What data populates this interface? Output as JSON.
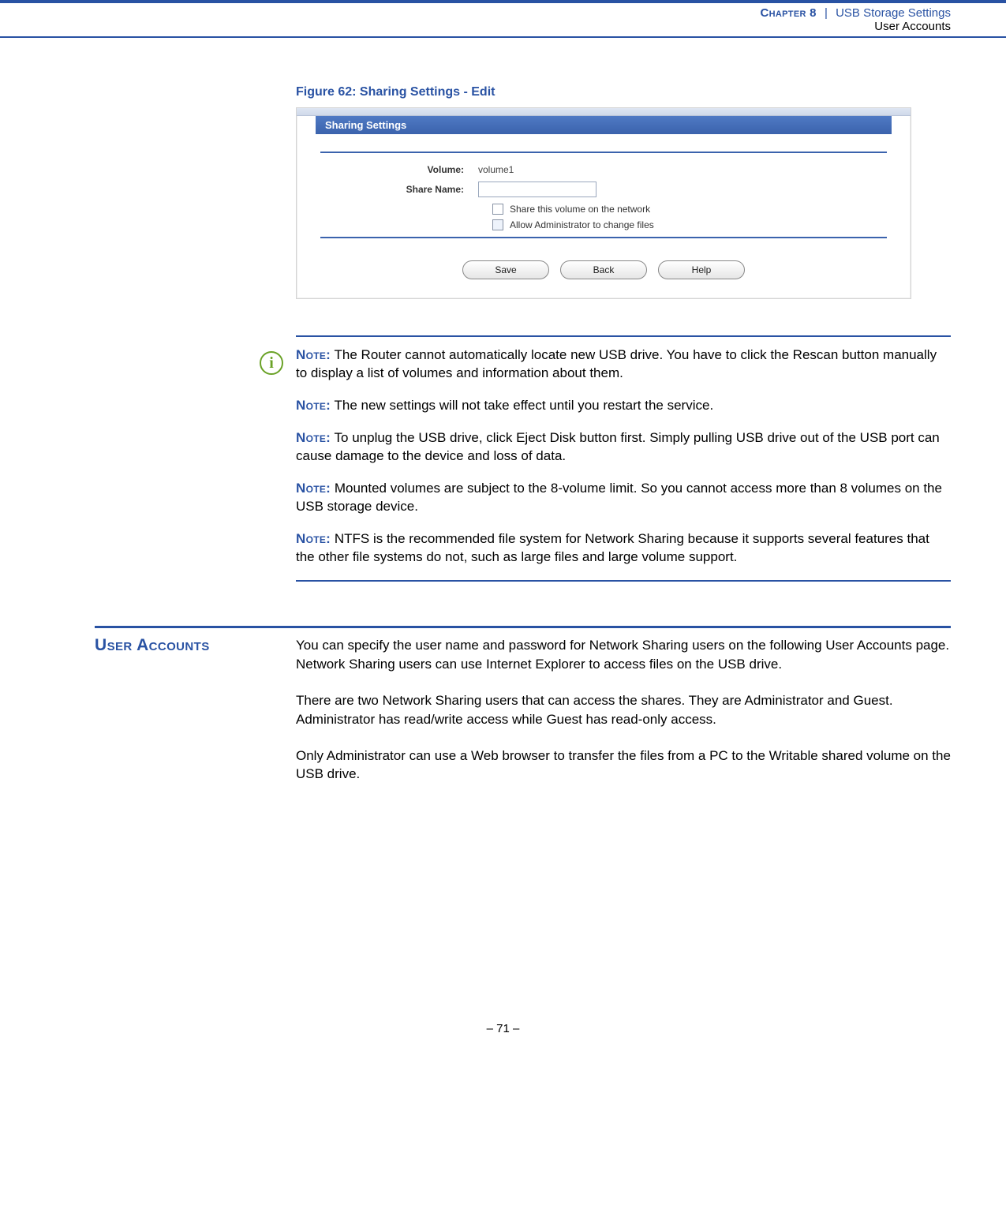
{
  "header": {
    "chapter_label": "Chapter 8",
    "chapter_title": "USB Storage Settings",
    "section_title": "User Accounts"
  },
  "figure": {
    "caption": "Figure 62:  Sharing Settings - Edit"
  },
  "screenshot": {
    "panel_title": "Sharing Settings",
    "volume_label": "Volume:",
    "volume_value": "volume1",
    "share_name_label": "Share Name:",
    "share_name_value": "",
    "checkbox1_label": "Share this volume on the network",
    "checkbox2_label": "Allow Administrator to change files",
    "buttons": {
      "save": "Save",
      "back": "Back",
      "help": "Help"
    }
  },
  "notes": {
    "label": "Note:",
    "items": [
      "The Router cannot automatically locate new USB drive. You have to click the Rescan button manually to display a list of volumes and information about them.",
      "The new settings will not take effect until you restart the service.",
      "To unplug the USB drive, click Eject Disk button first. Simply pulling USB drive out of the USB port can cause damage to the device and loss of data.",
      "Mounted volumes are subject to the 8-volume limit. So you cannot access more than 8 volumes on the USB storage device.",
      "NTFS is the recommended file system for Network Sharing because it supports several features that the other file systems do not, such as large files and large volume support."
    ]
  },
  "section": {
    "heading": "User Accounts",
    "paragraphs": [
      "You can specify the user name and password for Network Sharing users on the following User Accounts page. Network Sharing users can use Internet Explorer to access files on the USB drive.",
      "There are two Network Sharing users that can access the shares. They are Administrator and Guest. Administrator has read/write access while Guest has read-only access.",
      "Only Administrator can use a Web browser to transfer the files from a PC to the Writable shared volume on the USB drive."
    ]
  },
  "footer": {
    "page_number": "–  71  –"
  },
  "colors": {
    "brand_blue": "#2952a3",
    "info_green": "#6aa227"
  }
}
